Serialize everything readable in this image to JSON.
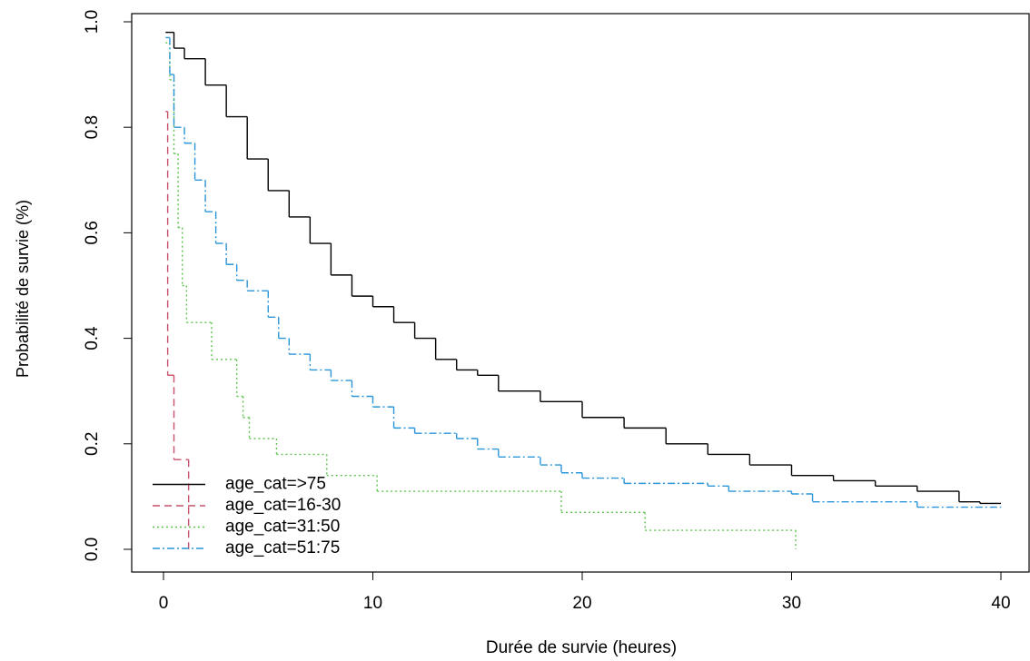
{
  "chart_data": {
    "type": "line",
    "step": true,
    "xlabel": "Durée de survie (heures)",
    "ylabel": "Probabilité de survie (%)",
    "xlim": [
      0,
      40
    ],
    "ylim": [
      0,
      1
    ],
    "xticks": [
      0,
      10,
      20,
      30,
      40
    ],
    "yticks": [
      {
        "value": 0,
        "label": "0.0"
      },
      0.2,
      0.4,
      0.6,
      0.8,
      {
        "value": 1,
        "label": "1.0"
      }
    ],
    "legend": "bottomleft",
    "grid": false,
    "series": [
      {
        "name": "age_cat=>75",
        "color": "#000000",
        "dash": "none",
        "x": [
          0.1,
          0.5,
          1,
          2,
          3,
          4,
          5,
          6,
          7,
          8,
          9,
          10,
          11,
          12,
          13,
          14,
          15,
          16,
          18,
          20,
          22,
          24,
          26,
          28,
          30,
          32,
          34,
          36,
          38,
          39,
          40
        ],
        "values": [
          0.98,
          0.95,
          0.93,
          0.88,
          0.82,
          0.74,
          0.68,
          0.63,
          0.58,
          0.52,
          0.48,
          0.46,
          0.43,
          0.4,
          0.36,
          0.34,
          0.33,
          0.3,
          0.28,
          0.25,
          0.23,
          0.2,
          0.18,
          0.16,
          0.14,
          0.13,
          0.12,
          0.11,
          0.09,
          0.087,
          0.087
        ]
      },
      {
        "name": "age_cat=16-30",
        "color": "#c9506a",
        "dash": "8,5",
        "x": [
          0.1,
          0.2,
          0.5,
          1.2
        ],
        "values": [
          0.83,
          0.33,
          0.17,
          0
        ]
      },
      {
        "name": "age_cat=31:50",
        "color": "#5ec24f",
        "dash": "2,3",
        "x": [
          0.1,
          0.3,
          0.5,
          0.7,
          0.9,
          1.1,
          2.3,
          3.5,
          3.8,
          4.1,
          5.4,
          7.8,
          10.2,
          19,
          23,
          30.2
        ],
        "values": [
          0.96,
          0.89,
          0.75,
          0.61,
          0.5,
          0.43,
          0.36,
          0.29,
          0.25,
          0.21,
          0.18,
          0.14,
          0.11,
          0.07,
          0.036,
          0
        ]
      },
      {
        "name": "age_cat=51:75",
        "color": "#2a95d8",
        "dash": "8,3,2,3",
        "x": [
          0.1,
          0.3,
          0.5,
          1,
          1.5,
          2,
          2.5,
          3,
          3.5,
          4,
          5,
          5.5,
          6,
          7,
          8,
          9,
          10,
          11,
          12,
          14,
          15,
          16,
          18,
          19,
          20,
          22,
          26,
          27,
          30,
          31,
          36,
          40
        ],
        "values": [
          0.97,
          0.9,
          0.8,
          0.77,
          0.7,
          0.64,
          0.58,
          0.54,
          0.51,
          0.49,
          0.44,
          0.4,
          0.37,
          0.34,
          0.32,
          0.29,
          0.27,
          0.23,
          0.22,
          0.21,
          0.19,
          0.175,
          0.16,
          0.145,
          0.135,
          0.125,
          0.12,
          0.11,
          0.105,
          0.09,
          0.08,
          0.08
        ]
      }
    ]
  }
}
